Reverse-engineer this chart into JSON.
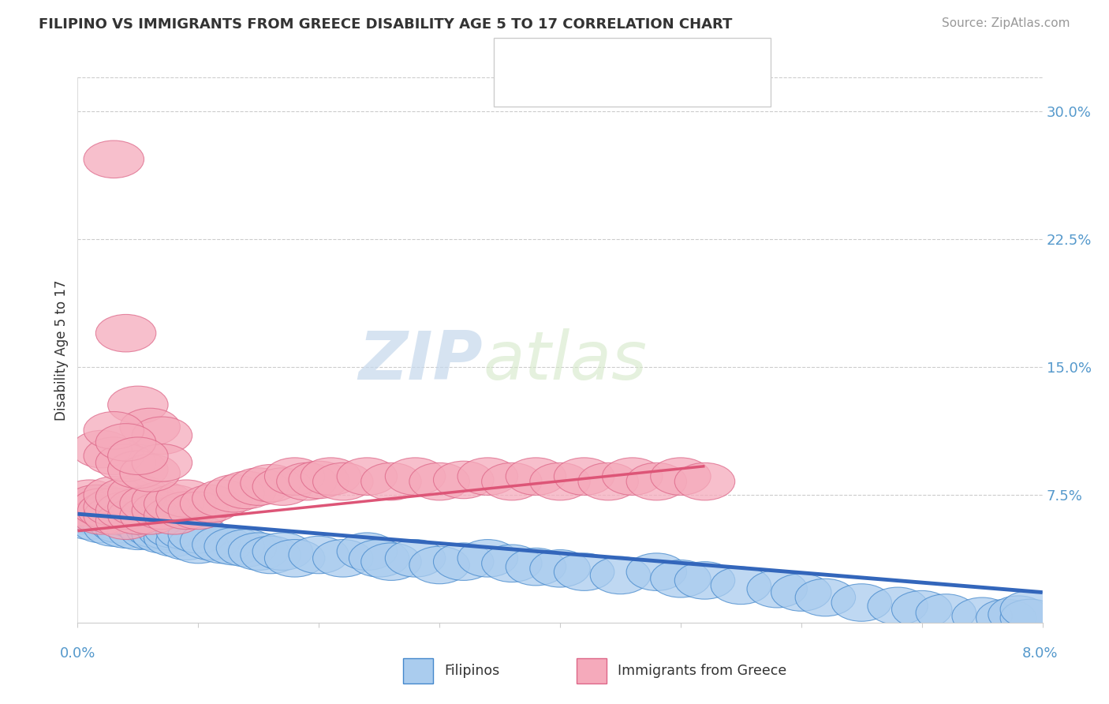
{
  "title": "FILIPINO VS IMMIGRANTS FROM GREECE DISABILITY AGE 5 TO 17 CORRELATION CHART",
  "source": "Source: ZipAtlas.com",
  "ylabel": "Disability Age 5 to 17",
  "right_yticks": [
    0.075,
    0.15,
    0.225,
    0.3
  ],
  "right_yticklabels": [
    "7.5%",
    "15.0%",
    "22.5%",
    "30.0%"
  ],
  "xlim": [
    0.0,
    0.08
  ],
  "ylim": [
    0.0,
    0.32
  ],
  "watermark_zip": "ZIP",
  "watermark_atlas": "atlas",
  "blue_color": "#aaccee",
  "pink_color": "#f5aabb",
  "blue_edge_color": "#4488cc",
  "pink_edge_color": "#dd6688",
  "blue_line_color": "#3366bb",
  "pink_line_color": "#dd5577",
  "title_color": "#333333",
  "source_color": "#999999",
  "axis_label_color": "#5599cc",
  "grid_color": "#cccccc",
  "blue_scatter_x": [
    0.0005,
    0.001,
    0.001,
    0.0012,
    0.0015,
    0.002,
    0.002,
    0.002,
    0.0025,
    0.003,
    0.003,
    0.003,
    0.0032,
    0.0035,
    0.004,
    0.004,
    0.004,
    0.005,
    0.005,
    0.005,
    0.0055,
    0.006,
    0.006,
    0.0065,
    0.007,
    0.007,
    0.0075,
    0.008,
    0.008,
    0.009,
    0.009,
    0.01,
    0.01,
    0.011,
    0.012,
    0.013,
    0.014,
    0.015,
    0.016,
    0.017,
    0.018,
    0.02,
    0.022,
    0.024,
    0.025,
    0.026,
    0.028,
    0.03,
    0.032,
    0.034,
    0.036,
    0.038,
    0.04,
    0.042,
    0.045,
    0.048,
    0.05,
    0.052,
    0.055,
    0.058,
    0.06,
    0.062,
    0.065,
    0.068,
    0.07,
    0.072,
    0.075,
    0.077,
    0.078,
    0.079,
    0.079
  ],
  "blue_scatter_y": [
    0.063,
    0.06,
    0.068,
    0.065,
    0.063,
    0.058,
    0.064,
    0.07,
    0.062,
    0.056,
    0.063,
    0.068,
    0.06,
    0.058,
    0.055,
    0.062,
    0.068,
    0.054,
    0.06,
    0.065,
    0.058,
    0.054,
    0.06,
    0.055,
    0.052,
    0.058,
    0.054,
    0.05,
    0.055,
    0.048,
    0.054,
    0.046,
    0.052,
    0.048,
    0.046,
    0.045,
    0.044,
    0.042,
    0.04,
    0.042,
    0.038,
    0.04,
    0.038,
    0.042,
    0.038,
    0.036,
    0.038,
    0.034,
    0.036,
    0.038,
    0.035,
    0.033,
    0.032,
    0.03,
    0.028,
    0.03,
    0.026,
    0.025,
    0.022,
    0.02,
    0.018,
    0.015,
    0.012,
    0.01,
    0.008,
    0.006,
    0.004,
    0.003,
    0.005,
    0.003,
    0.008
  ],
  "pink_scatter_x": [
    0.0005,
    0.001,
    0.001,
    0.0015,
    0.002,
    0.002,
    0.0025,
    0.003,
    0.003,
    0.003,
    0.004,
    0.004,
    0.004,
    0.005,
    0.005,
    0.005,
    0.006,
    0.006,
    0.007,
    0.007,
    0.008,
    0.008,
    0.009,
    0.009,
    0.01,
    0.011,
    0.012,
    0.013,
    0.014,
    0.015,
    0.016,
    0.017,
    0.018,
    0.019,
    0.02,
    0.021,
    0.022,
    0.024,
    0.026,
    0.028,
    0.03,
    0.032,
    0.034,
    0.036,
    0.038,
    0.04,
    0.042,
    0.044,
    0.046,
    0.048,
    0.05,
    0.052,
    0.003,
    0.004,
    0.005,
    0.006,
    0.007,
    0.002,
    0.003,
    0.004,
    0.005,
    0.006,
    0.007,
    0.003,
    0.004,
    0.005
  ],
  "pink_scatter_y": [
    0.068,
    0.065,
    0.073,
    0.07,
    0.063,
    0.068,
    0.066,
    0.063,
    0.068,
    0.075,
    0.06,
    0.066,
    0.074,
    0.063,
    0.068,
    0.076,
    0.063,
    0.07,
    0.066,
    0.072,
    0.063,
    0.07,
    0.066,
    0.073,
    0.066,
    0.07,
    0.073,
    0.076,
    0.078,
    0.08,
    0.082,
    0.08,
    0.086,
    0.083,
    0.084,
    0.086,
    0.083,
    0.086,
    0.083,
    0.086,
    0.083,
    0.084,
    0.086,
    0.083,
    0.086,
    0.083,
    0.086,
    0.083,
    0.086,
    0.083,
    0.086,
    0.083,
    0.272,
    0.17,
    0.128,
    0.115,
    0.11,
    0.102,
    0.098,
    0.094,
    0.09,
    0.088,
    0.094,
    0.113,
    0.106,
    0.098
  ],
  "blue_trend_x": [
    0.0,
    0.08
  ],
  "blue_trend_y": [
    0.064,
    0.018
  ],
  "pink_trend_x": [
    0.0,
    0.052
  ],
  "pink_trend_y": [
    0.054,
    0.092
  ]
}
